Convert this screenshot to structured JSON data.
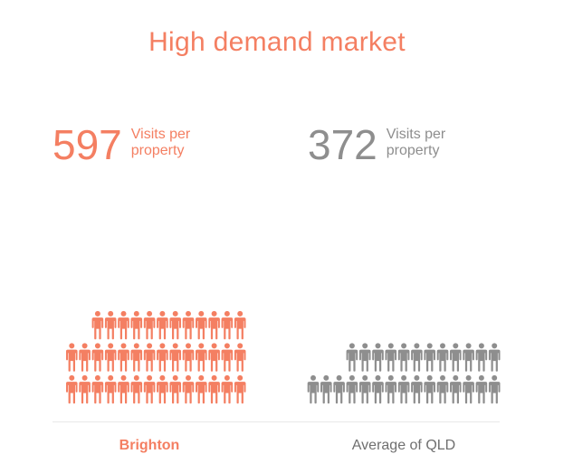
{
  "colors": {
    "accent": "#f47f62",
    "neutral": "#8e8e8e",
    "caption_neutral": "#6f6f6f",
    "divider": "#e8e8e8"
  },
  "title": "High demand market",
  "brighton": {
    "value": "597",
    "label_line1": "Visits per",
    "label_line2": "property",
    "caption": "Brighton",
    "icon_rows": [
      12,
      14,
      14
    ],
    "icon": "person-icon"
  },
  "qld": {
    "value": "372",
    "label_line1": "Visits per",
    "label_line2": "property",
    "caption": "Average of QLD",
    "icon_rows": [
      12,
      15
    ],
    "icon": "person-icon"
  }
}
